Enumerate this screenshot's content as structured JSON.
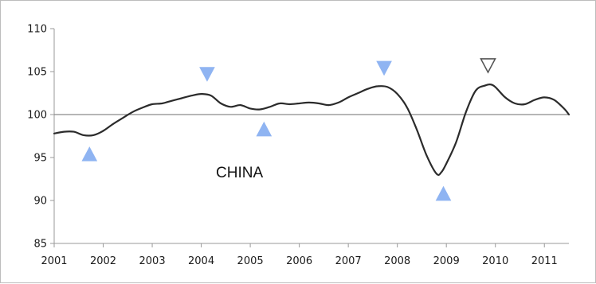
{
  "chart_data": {
    "type": "line",
    "title": "",
    "xlabel": "",
    "ylabel": "",
    "annotation": "CHINA",
    "xlim": [
      2001.0,
      2011.5
    ],
    "ylim": [
      85,
      110
    ],
    "x_ticks": [
      2001,
      2002,
      2003,
      2004,
      2005,
      2006,
      2007,
      2008,
      2009,
      2010,
      2011
    ],
    "x_tick_labels": [
      "2001",
      "2002",
      "2003",
      "2004",
      "2005",
      "2006",
      "2007",
      "2008",
      "2009",
      "2010",
      "2011"
    ],
    "y_ticks": [
      85,
      90,
      95,
      100,
      105,
      110
    ],
    "y_tick_labels": [
      "85",
      "90",
      "95",
      "100",
      "105",
      "110"
    ],
    "reference_line": 100,
    "grid": false,
    "series": [
      {
        "color": "#2b2b2b",
        "x": [
          2001.0,
          2001.2,
          2001.4,
          2001.6,
          2001.8,
          2002.0,
          2002.2,
          2002.4,
          2002.6,
          2002.8,
          2003.0,
          2003.2,
          2003.4,
          2003.6,
          2003.8,
          2004.0,
          2004.2,
          2004.4,
          2004.6,
          2004.8,
          2005.0,
          2005.2,
          2005.4,
          2005.6,
          2005.8,
          2006.0,
          2006.2,
          2006.4,
          2006.6,
          2006.8,
          2007.0,
          2007.2,
          2007.4,
          2007.6,
          2007.8,
          2008.0,
          2008.2,
          2008.4,
          2008.6,
          2008.8,
          2008.9,
          2009.0,
          2009.2,
          2009.4,
          2009.6,
          2009.8,
          2009.9,
          2010.0,
          2010.2,
          2010.4,
          2010.6,
          2010.8,
          2011.0,
          2011.2,
          2011.4,
          2011.5
        ],
        "y": [
          97.8,
          98.0,
          98.0,
          97.6,
          97.6,
          98.1,
          98.9,
          99.6,
          100.3,
          100.8,
          101.2,
          101.3,
          101.6,
          101.9,
          102.2,
          102.4,
          102.2,
          101.3,
          100.9,
          101.1,
          100.7,
          100.6,
          100.9,
          101.3,
          101.2,
          101.3,
          101.4,
          101.3,
          101.1,
          101.4,
          102.0,
          102.5,
          103.0,
          103.3,
          103.2,
          102.4,
          100.8,
          98.2,
          95.2,
          93.1,
          93.3,
          94.3,
          96.8,
          100.3,
          102.8,
          103.4,
          103.5,
          103.2,
          102.0,
          101.3,
          101.2,
          101.7,
          102.0,
          101.7,
          100.7,
          100.0
        ]
      }
    ],
    "markers": [
      {
        "x": 2001.72,
        "y": 95.4,
        "shape": "triangle-up",
        "fill": "#8fb4f2"
      },
      {
        "x": 2004.12,
        "y": 104.7,
        "shape": "triangle-down",
        "fill": "#8fb4f2"
      },
      {
        "x": 2005.28,
        "y": 98.3,
        "shape": "triangle-up",
        "fill": "#8fb4f2"
      },
      {
        "x": 2007.73,
        "y": 105.4,
        "shape": "triangle-down",
        "fill": "#8fb4f2"
      },
      {
        "x": 2008.94,
        "y": 90.8,
        "shape": "triangle-up",
        "fill": "#8fb4f2"
      },
      {
        "x": 2009.85,
        "y": 105.7,
        "shape": "triangle-down",
        "fill": "none"
      }
    ]
  }
}
